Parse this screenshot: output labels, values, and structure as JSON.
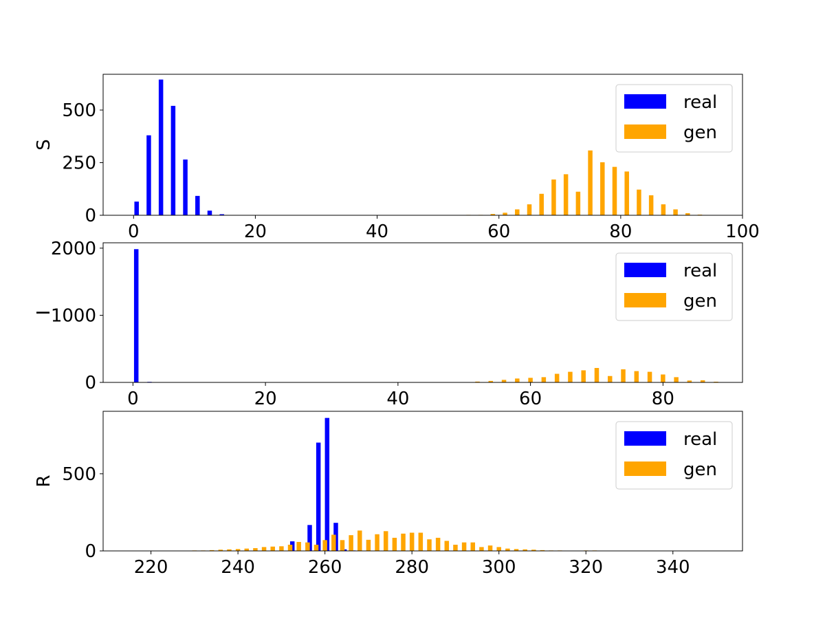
{
  "colors": {
    "real": "#0000ff",
    "gen": "#ffa500",
    "axes": "#000000",
    "legend_border": "#cccccc"
  },
  "chart_data": [
    {
      "type": "bar",
      "ylabel": "S",
      "xlim": [
        -5,
        100
      ],
      "ylim": [
        0,
        670
      ],
      "xticks": [
        0,
        20,
        40,
        60,
        80,
        100
      ],
      "yticks": [
        0,
        250,
        500
      ],
      "legend": "top-right",
      "series": [
        {
          "name": "real",
          "x": [
            0.5,
            2.5,
            4.5,
            6.5,
            8.5,
            10.5,
            12.5,
            14.5
          ],
          "values": [
            65,
            380,
            645,
            520,
            265,
            92,
            22,
            5
          ]
        },
        {
          "name": "gen",
          "x": [
            55,
            57,
            59,
            61,
            63,
            65,
            67,
            69,
            71,
            73,
            75,
            77,
            79,
            81,
            83,
            85,
            87,
            89,
            91,
            93
          ],
          "values": [
            2,
            2,
            6,
            12,
            28,
            52,
            102,
            170,
            195,
            112,
            308,
            252,
            230,
            208,
            122,
            95,
            52,
            28,
            10,
            3
          ]
        }
      ]
    },
    {
      "type": "bar",
      "ylabel": "I",
      "xlim": [
        -4.5,
        92
      ],
      "ylim": [
        0,
        2080
      ],
      "xticks": [
        0,
        20,
        40,
        60,
        80
      ],
      "yticks": [
        0,
        1000,
        2000
      ],
      "legend": "top-right",
      "series": [
        {
          "name": "real",
          "x": [
            0.5,
            2.5
          ],
          "values": [
            1985,
            8
          ]
        },
        {
          "name": "gen",
          "x": [
            52,
            54,
            56,
            58,
            60,
            62,
            64,
            66,
            68,
            70,
            72,
            74,
            76,
            78,
            80,
            82,
            84,
            86,
            88
          ],
          "values": [
            12,
            22,
            38,
            58,
            68,
            78,
            128,
            158,
            180,
            215,
            95,
            195,
            168,
            158,
            118,
            78,
            28,
            32,
            10
          ]
        }
      ]
    },
    {
      "type": "bar",
      "ylabel": "R",
      "xlim": [
        209,
        356
      ],
      "ylim": [
        0,
        905
      ],
      "xticks": [
        220,
        240,
        260,
        280,
        300,
        320,
        340
      ],
      "yticks": [
        0,
        500
      ],
      "legend": "top-right",
      "series": [
        {
          "name": "real",
          "x": [
            252.5,
            256.5,
            258.5,
            260.5,
            262.5,
            264.5,
            266.5
          ],
          "values": [
            62,
            168,
            702,
            862,
            182,
            10,
            3
          ]
        },
        {
          "name": "gen",
          "x": [
            230,
            232,
            234,
            236,
            238,
            240,
            242,
            244,
            246,
            248,
            250,
            252,
            254,
            256,
            258,
            260,
            262,
            264,
            266,
            268,
            270,
            272,
            274,
            276,
            278,
            280,
            282,
            284,
            286,
            288,
            290,
            292,
            294,
            296,
            298,
            300,
            302,
            304,
            306,
            308,
            310,
            312,
            314,
            316,
            318,
            320,
            322,
            324,
            326,
            328,
            330
          ],
          "values": [
            3,
            3,
            5,
            8,
            10,
            12,
            15,
            18,
            25,
            28,
            30,
            40,
            58,
            55,
            40,
            70,
            105,
            70,
            102,
            132,
            72,
            108,
            128,
            85,
            112,
            118,
            118,
            75,
            85,
            65,
            40,
            55,
            55,
            25,
            35,
            25,
            15,
            12,
            10,
            8,
            5,
            3,
            3,
            2,
            2,
            3,
            3,
            2,
            2,
            2,
            2
          ]
        }
      ]
    }
  ]
}
